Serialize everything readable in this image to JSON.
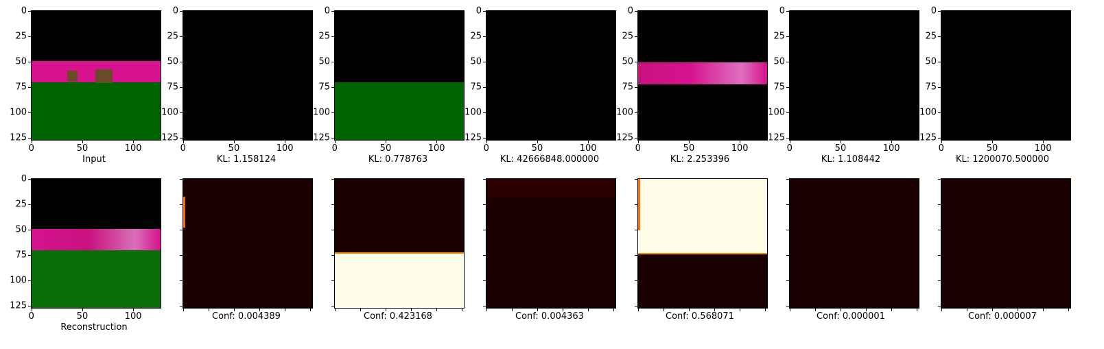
{
  "tick_values": [
    "0",
    "25",
    "50",
    "75",
    "100",
    "125"
  ],
  "x_tick_values": [
    "0",
    "50",
    "100"
  ],
  "top_row": {
    "captions": [
      "Input",
      "KL: 1.158124",
      "KL: 0.778763",
      "KL: 42666848.000000",
      "KL: 2.253396",
      "KL: 1.108442",
      "KL: 1200070.500000"
    ]
  },
  "bottom_row": {
    "captions": [
      "Reconstruction",
      "Conf: 0.004389",
      "Conf: 0.423168",
      "Conf: 0.004363",
      "Conf: 0.568071",
      "Conf: 0.000001",
      "Conf: 0.000007"
    ],
    "confidence_values": [
      0.004389,
      0.423168,
      0.004363,
      0.568071,
      1e-06,
      7e-06
    ]
  },
  "colors": {
    "wall_magenta": "#d6128f",
    "floor_green": "#006400",
    "recon_green": "#0a6e0a",
    "object_brown": "#6b4a2a",
    "heat_dark": "#1a0000",
    "heat_bright": "#fffde8"
  }
}
